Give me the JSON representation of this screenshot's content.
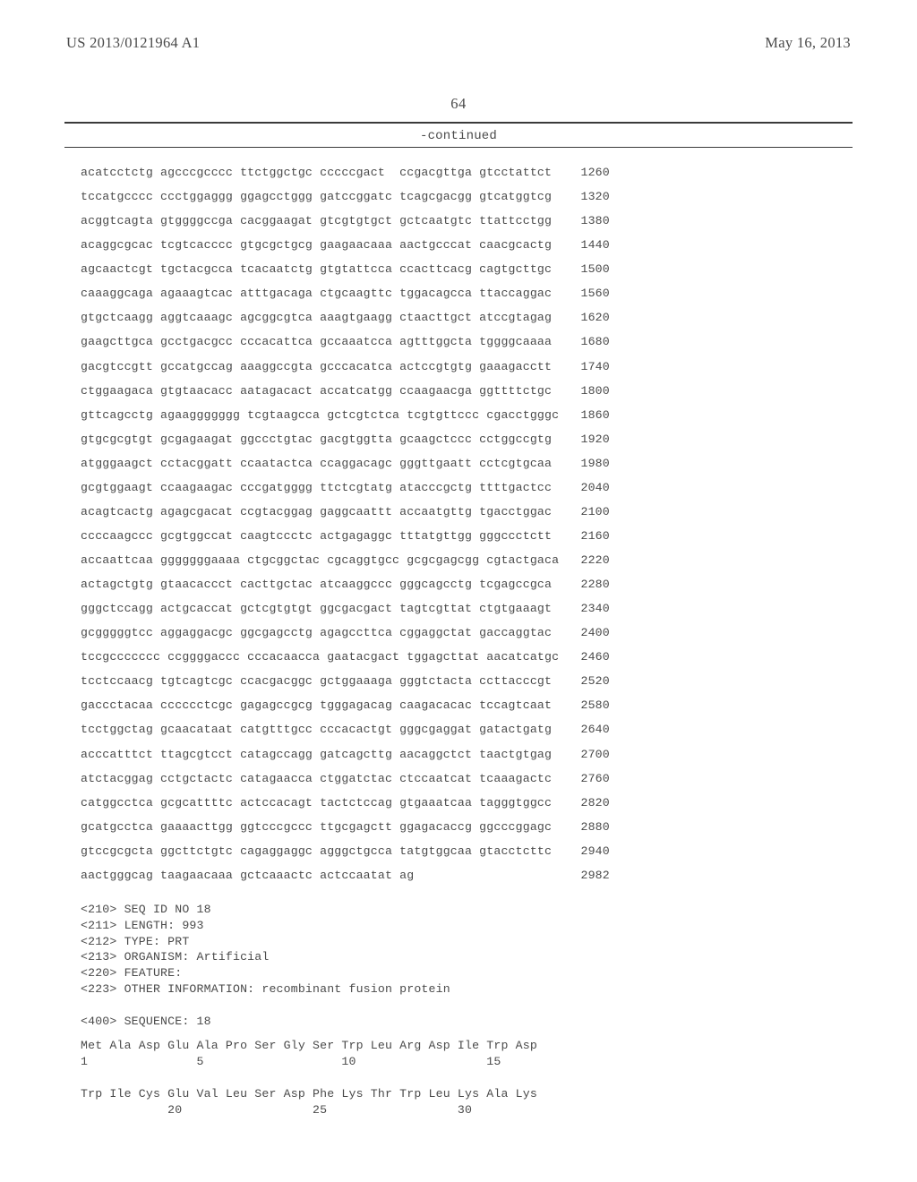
{
  "header": {
    "publication_number": "US 2013/0121964 A1",
    "publication_date": "May 16, 2013"
  },
  "page_number": "64",
  "continued_label": "-continued",
  "sequence": {
    "rows": [
      {
        "groups": [
          "acatcctctg",
          "agcccgcccc",
          "ttctggctgc",
          "cccccgact",
          "ccgacgttga",
          "gtcctattct"
        ],
        "pos": 1260
      },
      {
        "groups": [
          "tccatgcccc",
          "ccctggaggg",
          "ggagcctggg",
          "gatccggatc",
          "tcagcgacgg",
          "gtcatggtcg"
        ],
        "pos": 1320
      },
      {
        "groups": [
          "acggtcagta",
          "gtggggccga",
          "cacggaagat",
          "gtcgtgtgct",
          "gctcaatgtc",
          "ttattcctgg"
        ],
        "pos": 1380
      },
      {
        "groups": [
          "acaggcgcac",
          "tcgtcacccc",
          "gtgcgctgcg",
          "gaagaacaaa",
          "aactgcccat",
          "caacgcactg"
        ],
        "pos": 1440
      },
      {
        "groups": [
          "agcaactcgt",
          "tgctacgcca",
          "tcacaatctg",
          "gtgtattcca",
          "ccacttcacg",
          "cagtgcttgc"
        ],
        "pos": 1500
      },
      {
        "groups": [
          "caaaggcaga",
          "agaaagtcac",
          "atttgacaga",
          "ctgcaagttc",
          "tggacagcca",
          "ttaccaggac"
        ],
        "pos": 1560
      },
      {
        "groups": [
          "gtgctcaagg",
          "aggtcaaagc",
          "agcggcgtca",
          "aaagtgaagg",
          "ctaacttgct",
          "atccgtagag"
        ],
        "pos": 1620
      },
      {
        "groups": [
          "gaagcttgca",
          "gcctgacgcc",
          "cccacattca",
          "gccaaatcca",
          "agtttggcta",
          "tggggcaaaa"
        ],
        "pos": 1680
      },
      {
        "groups": [
          "gacgtccgtt",
          "gccatgccag",
          "aaaggccgta",
          "gcccacatca",
          "actccgtgtg",
          "gaaagacctt"
        ],
        "pos": 1740
      },
      {
        "groups": [
          "ctggaagaca",
          "gtgtaacacc",
          "aatagacact",
          "accatcatgg",
          "ccaagaacga",
          "ggttttctgc"
        ],
        "pos": 1800
      },
      {
        "groups": [
          "gttcagcctg",
          "agaaggggggg",
          "tcgtaagcca",
          "gctcgtctca",
          "tcgtgttccc",
          "cgacctgggc"
        ],
        "pos": 1860
      },
      {
        "groups": [
          "gtgcgcgtgt",
          "gcgagaagat",
          "ggccctgtac",
          "gacgtggtta",
          "gcaagctccc",
          "cctggccgtg"
        ],
        "pos": 1920
      },
      {
        "groups": [
          "atgggaagct",
          "cctacggatt",
          "ccaatactca",
          "ccaggacagc",
          "gggttgaatt",
          "cctcgtgcaa"
        ],
        "pos": 1980
      },
      {
        "groups": [
          "gcgtggaagt",
          "ccaagaagac",
          "cccgatgggg",
          "ttctcgtatg",
          "atacccgctg",
          "ttttgactcc"
        ],
        "pos": 2040
      },
      {
        "groups": [
          "acagtcactg",
          "agagcgacat",
          "ccgtacggag",
          "gaggcaattt",
          "accaatgttg",
          "tgacctggac"
        ],
        "pos": 2100
      },
      {
        "groups": [
          "ccccaagccc",
          "gcgtggccat",
          "caagtccctc",
          "actgagaggc",
          "tttatgttgg",
          "gggccctctt"
        ],
        "pos": 2160
      },
      {
        "groups": [
          "accaattcaa",
          "gggggggaaaa",
          "ctgcggctac",
          "cgcaggtgcc",
          "gcgcgagcgg",
          "cgtactgaca"
        ],
        "pos": 2220
      },
      {
        "groups": [
          "actagctgtg",
          "gtaacaccct",
          "cacttgctac",
          "atcaaggccc",
          "gggcagcctg",
          "tcgagccgca"
        ],
        "pos": 2280
      },
      {
        "groups": [
          "gggctccagg",
          "actgcaccat",
          "gctcgtgtgt",
          "ggcgacgact",
          "tagtcgttat",
          "ctgtgaaagt"
        ],
        "pos": 2340
      },
      {
        "groups": [
          "gcgggggtcc",
          "aggaggacgc",
          "ggcgagcctg",
          "agagccttca",
          "cggaggctat",
          "gaccaggtac"
        ],
        "pos": 2400
      },
      {
        "groups": [
          "tccgccccccc",
          "ccggggaccc",
          "cccacaacca",
          "gaatacgact",
          "tggagcttat",
          "aacatcatgc"
        ],
        "pos": 2460
      },
      {
        "groups": [
          "tcctccaacg",
          "tgtcagtcgc",
          "ccacgacggc",
          "gctggaaaga",
          "gggtctacta",
          "ccttacccgt"
        ],
        "pos": 2520
      },
      {
        "groups": [
          "gaccctacaa",
          "cccccctcgc",
          "gagagccgcg",
          "tgggagacag",
          "caagacacac",
          "tccagtcaat"
        ],
        "pos": 2580
      },
      {
        "groups": [
          "tcctggctag",
          "gcaacataat",
          "catgtttgcc",
          "cccacactgt",
          "gggcgaggat",
          "gatactgatg"
        ],
        "pos": 2640
      },
      {
        "groups": [
          "acccatttct",
          "ttagcgtcct",
          "catagccagg",
          "gatcagcttg",
          "aacaggctct",
          "taactgtgag"
        ],
        "pos": 2700
      },
      {
        "groups": [
          "atctacggag",
          "cctgctactc",
          "catagaacca",
          "ctggatctac",
          "ctccaatcat",
          "tcaaagactc"
        ],
        "pos": 2760
      },
      {
        "groups": [
          "catggcctca",
          "gcgcattttc",
          "actccacagt",
          "tactctccag",
          "gtgaaatcaa",
          "tagggtggcc"
        ],
        "pos": 2820
      },
      {
        "groups": [
          "gcatgcctca",
          "gaaaacttgg",
          "ggtcccgccc",
          "ttgcgagctt",
          "ggagacaccg",
          "ggcccggagc"
        ],
        "pos": 2880
      },
      {
        "groups": [
          "gtccgcgcta",
          "ggcttctgtc",
          "cagaggaggc",
          "agggctgcca",
          "tatgtggcaa",
          "gtacctcttc"
        ],
        "pos": 2940
      },
      {
        "groups": [
          "aactgggcag",
          "taagaacaaa",
          "gctcaaactc",
          "actccaatat",
          "ag"
        ],
        "pos": 2982
      }
    ]
  },
  "metadata": {
    "lines": [
      "<210> SEQ ID NO 18",
      "<211> LENGTH: 993",
      "<212> TYPE: PRT",
      "<213> ORGANISM: Artificial",
      "<220> FEATURE:",
      "<223> OTHER INFORMATION: recombinant fusion protein",
      "",
      "<400> SEQUENCE: 18"
    ]
  },
  "protein": {
    "rows": [
      {
        "aa": "Met Ala Asp Glu Ala Pro Ser Gly Ser Trp Leu Arg Asp Ile Trp Asp",
        "nums": "1               5                   10                  15"
      },
      {
        "aa": "Trp Ile Cys Glu Val Leu Ser Asp Phe Lys Thr Trp Leu Lys Ala Lys",
        "nums": "            20                  25                  30"
      }
    ]
  }
}
